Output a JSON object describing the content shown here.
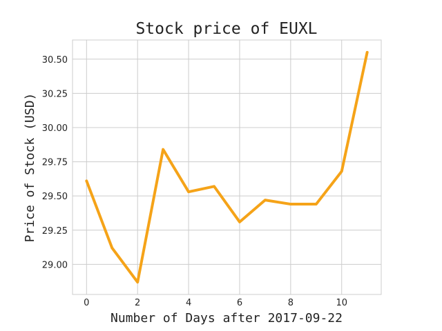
{
  "chart_data": {
    "type": "line",
    "title": "Stock price of EUXL",
    "xlabel": "Number of Days after 2017-09-22",
    "ylabel": "Price of Stock (USD)",
    "x": [
      0,
      1,
      2,
      3,
      4,
      5,
      6,
      7,
      8,
      9,
      10,
      11
    ],
    "series": [
      {
        "values": [
          29.61,
          29.12,
          28.87,
          29.84,
          29.53,
          29.57,
          29.31,
          29.47,
          29.44,
          29.44,
          29.68,
          30.55
        ]
      }
    ],
    "xlim": [
      -0.55,
      11.55
    ],
    "ylim": [
      28.78,
      30.64
    ],
    "xticks": [
      0,
      2,
      4,
      6,
      8,
      10
    ],
    "xtick_labels": [
      "0",
      "2",
      "4",
      "6",
      "8",
      "10"
    ],
    "yticks": [
      29.0,
      29.25,
      29.5,
      29.75,
      30.0,
      30.25,
      30.5
    ],
    "ytick_labels": [
      "29.00",
      "29.25",
      "29.50",
      "29.75",
      "30.00",
      "30.25",
      "30.50"
    ],
    "grid": true,
    "line_color": "#f5a318",
    "grid_color": "#cccccc"
  }
}
